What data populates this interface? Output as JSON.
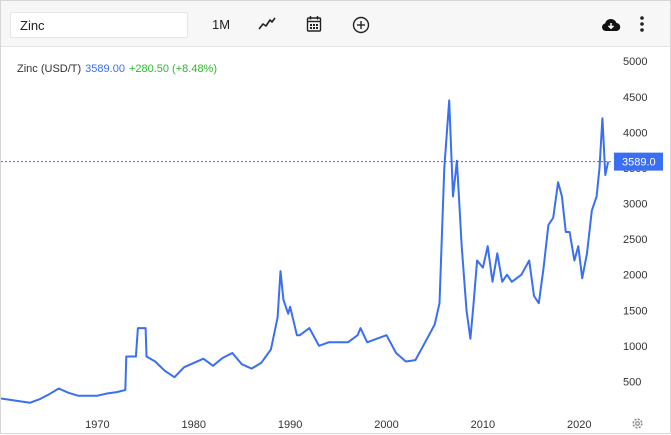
{
  "toolbar": {
    "search_value": "Zinc",
    "interval_label": "1M",
    "icons": [
      "line-chart-icon",
      "calendar-icon",
      "add-circle-icon",
      "download-cloud-icon",
      "more-vertical-icon",
      "settings-gear-icon"
    ]
  },
  "legend": {
    "symbol": "Zinc (USD/T)",
    "price": "3589.00",
    "change": "+280.50 (+8.48%)"
  },
  "colors": {
    "line": "#3a6ff2",
    "change_positive": "#2fb82f",
    "price_tag_bg": "#3a6ff2"
  },
  "chart_data": {
    "type": "line",
    "series": [
      {
        "values_x": [
          1960,
          1963,
          1964,
          1965,
          1966,
          1967,
          1968,
          1970,
          1971,
          1972,
          1972.9,
          1973,
          1974,
          1974.2,
          1975,
          1975.1,
          1976,
          1977,
          1978,
          1979,
          1980,
          1981,
          1982,
          1983,
          1984,
          1985,
          1986,
          1987,
          1988,
          1988.7,
          1989,
          1989.3,
          1989.8,
          1990,
          1990.7,
          1991,
          1992,
          1993,
          1994,
          1995,
          1996,
          1997,
          1997.3,
          1998,
          1999,
          2000,
          2001,
          2002,
          2003,
          2004,
          2005,
          2005.5,
          2006,
          2006.5,
          2006.9,
          2007.3,
          2007.8,
          2008.3,
          2008.7,
          2009,
          2009.4,
          2010,
          2010.5,
          2011,
          2011.5,
          2012,
          2012.5,
          2013,
          2013.5,
          2014,
          2014.8,
          2015.3,
          2015.8,
          2016.3,
          2016.8,
          2017.3,
          2017.8,
          2018.2,
          2018.6,
          2019,
          2019.5,
          2019.9,
          2020.3,
          2020.8,
          2021.3,
          2021.8,
          2022.1,
          2022.4,
          2022.7,
          2023
        ],
        "values_y": [
          260,
          200,
          250,
          320,
          400,
          340,
          300,
          300,
          330,
          350,
          380,
          850,
          850,
          1250,
          1250,
          850,
          780,
          650,
          560,
          700,
          760,
          820,
          720,
          830,
          900,
          740,
          680,
          760,
          950,
          1400,
          2050,
          1650,
          1450,
          1550,
          1150,
          1150,
          1250,
          1000,
          1050,
          1050,
          1050,
          1150,
          1250,
          1050,
          1100,
          1150,
          900,
          780,
          800,
          1050,
          1300,
          1600,
          3500,
          4450,
          3100,
          3600,
          2400,
          1500,
          1100,
          1550,
          2200,
          2100,
          2400,
          1900,
          2300,
          1900,
          2000,
          1900,
          1950,
          2000,
          2200,
          1700,
          1600,
          2100,
          2700,
          2800,
          3300,
          3100,
          2600,
          2600,
          2200,
          2400,
          1950,
          2300,
          2900,
          3100,
          3500,
          4200,
          3400,
          3589
        ]
      }
    ],
    "x_ticks": [
      "1970",
      "1980",
      "1990",
      "2000",
      "2010",
      "2020"
    ],
    "y_ticks": [
      "500",
      "1000",
      "1500",
      "2000",
      "2500",
      "3000",
      "3500",
      "4000",
      "4500",
      "5000"
    ],
    "xlim": [
      1960,
      2023.5
    ],
    "ylim": [
      0,
      5200
    ],
    "price_line": {
      "value": 3589,
      "label": "3589.0"
    },
    "grid": false
  }
}
